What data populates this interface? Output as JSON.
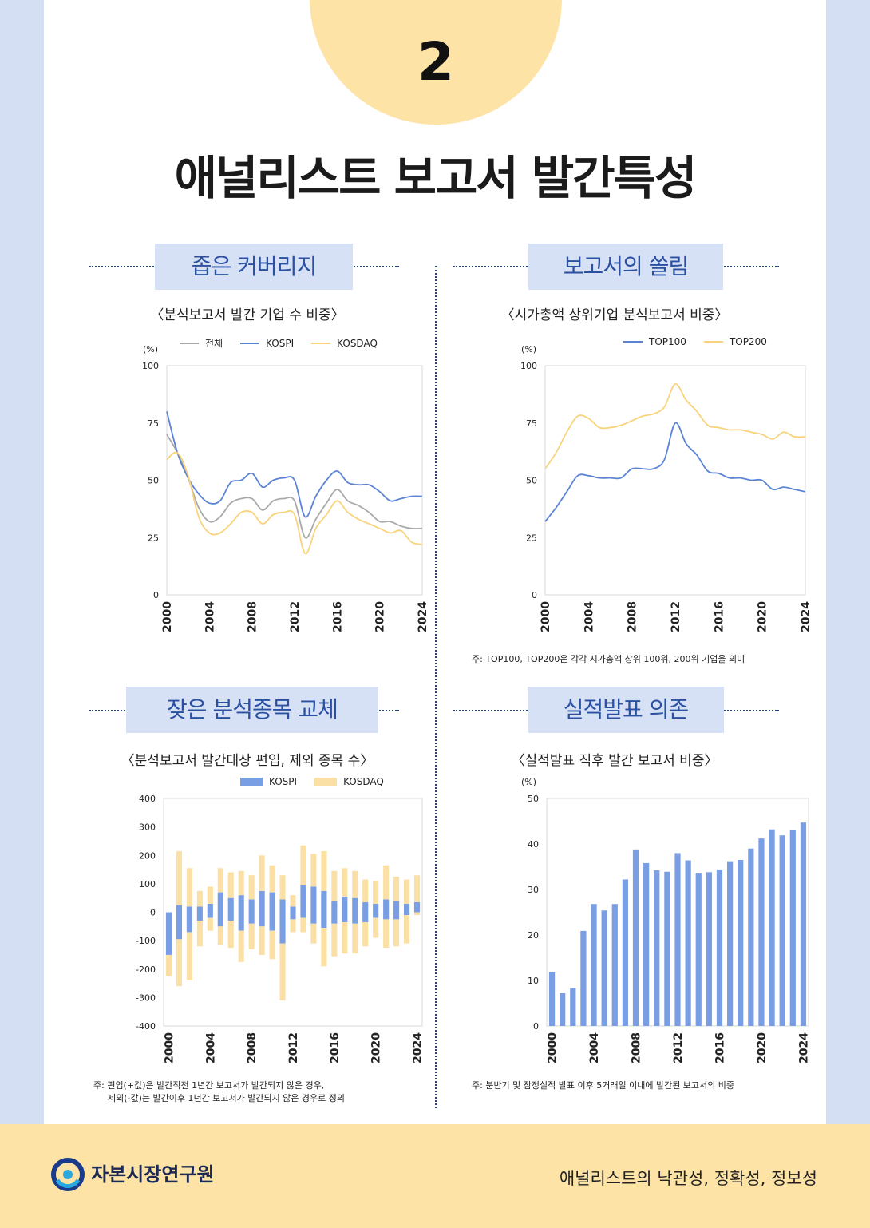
{
  "header": {
    "number": "2",
    "title": "애널리스트 보고서 발간특성"
  },
  "footer": {
    "logo_text": "자본시장연구원",
    "series": "애널리스트의 낙관성, 정확성, 정보성"
  },
  "colors": {
    "kospi": "#5b84d6",
    "kosdaq": "#f9d37c",
    "total": "#a9a9a9",
    "bar_kospi": "#7a9ee3",
    "bar_kosdaq": "#fbe0a6",
    "accent": "#2a50a2"
  },
  "panels": [
    {
      "section": "좁은 커버리지",
      "subtitle": "〈분석보고서 발간 기업 수 비중〉",
      "unit": "(%)",
      "legend": [
        "전체",
        "KOSPI",
        "KOSDAQ"
      ],
      "note": ""
    },
    {
      "section": "보고서의 쏠림",
      "subtitle": "〈시가총액 상위기업 분석보고서 비중〉",
      "unit": "(%)",
      "legend": [
        "TOP100",
        "TOP200"
      ],
      "note": "주: TOP100, TOP200은 각각 시가총액 상위 100위, 200위 기업을 의미"
    },
    {
      "section": "잦은 분석종목 교체",
      "subtitle": "〈분석보고서 발간대상 편입, 제외 종목 수〉",
      "unit": "",
      "legend": [
        "KOSPI",
        "KOSDAQ"
      ],
      "note": "주: 편입(+값)은 발간직전 1년간 보고서가 발간되지 않은 경우,",
      "note2": "제외(-값)는 발간이후 1년간 보고서가 발간되지 않은 경우로 정의"
    },
    {
      "section": "실적발표 의존",
      "subtitle": "〈실적발표 직후 발간 보고서 비중〉",
      "unit": "(%)",
      "legend": [],
      "note": "주: 분반기 및 잠정실적 발표 이후 5거래일 이내에 발간된 보고서의 비중"
    }
  ],
  "chart_data": [
    {
      "type": "line",
      "x": [
        2000,
        2001,
        2002,
        2003,
        2004,
        2005,
        2006,
        2007,
        2008,
        2009,
        2010,
        2011,
        2012,
        2013,
        2014,
        2015,
        2016,
        2017,
        2018,
        2019,
        2020,
        2021,
        2022,
        2023,
        2024
      ],
      "series": [
        {
          "name": "전체",
          "values": [
            70,
            62,
            51,
            38,
            32,
            34,
            40,
            42,
            42,
            37,
            41,
            42,
            41,
            25,
            33,
            40,
            46,
            41,
            39,
            36,
            32,
            32,
            30,
            29,
            29
          ]
        },
        {
          "name": "KOSPI",
          "values": [
            80,
            62,
            51,
            44,
            40,
            41,
            49,
            50,
            53,
            47,
            50,
            51,
            50,
            34,
            43,
            50,
            54,
            49,
            48,
            48,
            45,
            41,
            42,
            43,
            43
          ]
        },
        {
          "name": "KOSDAQ",
          "values": [
            59,
            62,
            52,
            34,
            27,
            27,
            31,
            36,
            36,
            31,
            35,
            36,
            35,
            18,
            29,
            35,
            41,
            36,
            33,
            31,
            29,
            27,
            28,
            23,
            22
          ]
        }
      ],
      "xticks": [
        "2000",
        "2004",
        "2008",
        "2012",
        "2016",
        "2020",
        "2024"
      ],
      "yticks": [
        "0",
        "25",
        "50",
        "75",
        "100"
      ],
      "ylim": [
        0,
        100
      ]
    },
    {
      "type": "line",
      "x": [
        2000,
        2001,
        2002,
        2003,
        2004,
        2005,
        2006,
        2007,
        2008,
        2009,
        2010,
        2011,
        2012,
        2013,
        2014,
        2015,
        2016,
        2017,
        2018,
        2019,
        2020,
        2021,
        2022,
        2023,
        2024
      ],
      "series": [
        {
          "name": "TOP100",
          "values": [
            32,
            38,
            45,
            52,
            52,
            51,
            51,
            51,
            55,
            55,
            55,
            59,
            75,
            66,
            61,
            54,
            53,
            51,
            51,
            50,
            50,
            46,
            47,
            46,
            45
          ]
        },
        {
          "name": "TOP200",
          "values": [
            55,
            62,
            71,
            78,
            77,
            73,
            73,
            74,
            76,
            78,
            79,
            82,
            92,
            85,
            80,
            74,
            73,
            72,
            72,
            71,
            70,
            68,
            71,
            69,
            69
          ]
        }
      ],
      "xticks": [
        "2000",
        "2004",
        "2008",
        "2012",
        "2016",
        "2020",
        "2024"
      ],
      "yticks": [
        "0",
        "25",
        "50",
        "75",
        "100"
      ],
      "ylim": [
        0,
        100
      ]
    },
    {
      "type": "bar",
      "stacked": true,
      "x": [
        2000,
        2001,
        2002,
        2003,
        2004,
        2005,
        2006,
        2007,
        2008,
        2009,
        2010,
        2011,
        2012,
        2013,
        2014,
        2015,
        2016,
        2017,
        2018,
        2019,
        2020,
        2021,
        2022,
        2023,
        2024
      ],
      "series": [
        {
          "name": "KOSPI",
          "positive": [
            0,
            25,
            20,
            20,
            30,
            70,
            50,
            60,
            45,
            75,
            70,
            45,
            20,
            95,
            90,
            75,
            40,
            55,
            50,
            35,
            30,
            45,
            40,
            30,
            35
          ],
          "negative": [
            -150,
            -95,
            -70,
            -30,
            -20,
            -50,
            -30,
            -65,
            -40,
            -50,
            -65,
            -110,
            -25,
            -20,
            -40,
            -55,
            -40,
            -35,
            -40,
            -35,
            -20,
            -25,
            -25,
            -10,
            0
          ]
        },
        {
          "name": "KOSDAQ",
          "positive": [
            0,
            190,
            135,
            55,
            60,
            85,
            90,
            85,
            85,
            125,
            95,
            85,
            40,
            140,
            115,
            140,
            105,
            100,
            95,
            80,
            80,
            120,
            85,
            85,
            95
          ],
          "negative": [
            -75,
            -165,
            -170,
            -90,
            -45,
            -65,
            -95,
            -110,
            -90,
            -100,
            -100,
            -200,
            -45,
            -50,
            -70,
            -135,
            -115,
            -110,
            -105,
            -85,
            -70,
            -100,
            -95,
            -100,
            -10
          ]
        }
      ],
      "xticks": [
        "2000",
        "2004",
        "2008",
        "2012",
        "2016",
        "2020",
        "2024"
      ],
      "yticks": [
        "400",
        "300",
        "200",
        "100",
        "0",
        "-100",
        "-200",
        "-300",
        "-400"
      ],
      "ylim": [
        -400,
        400
      ]
    },
    {
      "type": "bar",
      "x": [
        2000,
        2001,
        2002,
        2003,
        2004,
        2005,
        2006,
        2007,
        2008,
        2009,
        2010,
        2011,
        2012,
        2013,
        2014,
        2015,
        2016,
        2017,
        2018,
        2019,
        2020,
        2021,
        2022,
        2023,
        2024
      ],
      "values": [
        11.8,
        7.2,
        8.3,
        20.9,
        26.8,
        25.4,
        26.8,
        32.2,
        38.8,
        35.8,
        34.2,
        33.9,
        38.0,
        36.4,
        33.5,
        33.8,
        34.4,
        36.2,
        36.5,
        39.0,
        41.2,
        43.2,
        41.9,
        43.0,
        44.7
      ],
      "xticks": [
        "2000",
        "2004",
        "2008",
        "2012",
        "2016",
        "2020",
        "2024"
      ],
      "yticks": [
        "0",
        "10",
        "20",
        "30",
        "40",
        "50"
      ],
      "ylim": [
        0,
        50
      ]
    }
  ]
}
